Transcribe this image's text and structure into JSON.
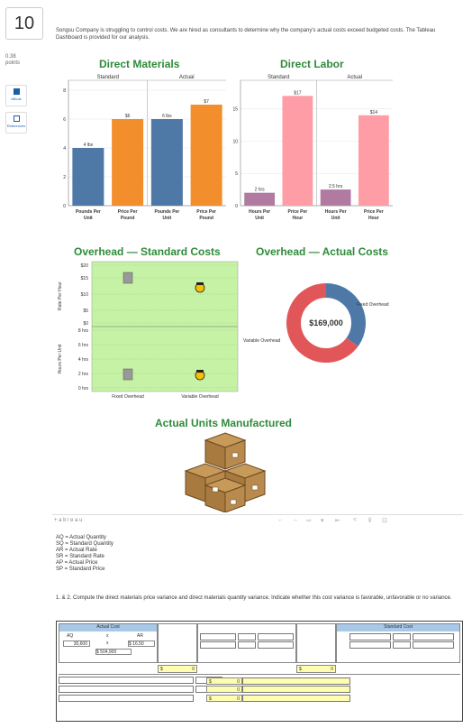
{
  "question": {
    "number": "10",
    "points_value": "0.38",
    "points_label": "points"
  },
  "side": {
    "ebook": "eBook",
    "references": "References"
  },
  "prompt": "Songsu Company is struggling to control costs. We are hired as consultants to determine why the company's actual costs exceed budgeted costs. The Tableau Dashboard is provided for our analysis.",
  "dm": {
    "title": "Direct Materials",
    "standard": "Standard",
    "actual": "Actual",
    "yticks": [
      "8",
      "6",
      "4",
      "2",
      "0"
    ],
    "bars": [
      {
        "label": "4 lbs",
        "value": 4,
        "color": "#4e79a7"
      },
      {
        "label": "$6",
        "value": 6,
        "color": "#f28e2b"
      },
      {
        "label": "6 lbs",
        "value": 6,
        "color": "#4e79a7"
      },
      {
        "label": "$7",
        "value": 7,
        "color": "#f28e2b"
      }
    ],
    "xlabels": [
      [
        "Pounds Per",
        "Unit"
      ],
      [
        "Price Per",
        "Pound"
      ],
      [
        "Pounds Per",
        "Unit"
      ],
      [
        "Price Per",
        "Pound"
      ]
    ]
  },
  "dl": {
    "title": "Direct Labor",
    "standard": "Standard",
    "actual": "Actual",
    "yticks": [
      "15",
      "10",
      "5",
      "0"
    ],
    "bars": [
      {
        "label": "2 hrs",
        "value": 2,
        "color": "#b07aa1"
      },
      {
        "label": "$17",
        "value": 17,
        "color": "#ff9da7"
      },
      {
        "label": "2.5 hrs",
        "value": 2.5,
        "color": "#b07aa1"
      },
      {
        "label": "$14",
        "value": 14,
        "color": "#ff9da7"
      }
    ],
    "xlabels": [
      [
        "Hours Per",
        "Unit"
      ],
      [
        "Price Per",
        "Hour"
      ],
      [
        "Hours Per",
        "Unit"
      ],
      [
        "Price Per",
        "Hour"
      ]
    ]
  },
  "oh_std": {
    "title": "Overhead — Standard Costs",
    "rate_label": "Rate Per Hour",
    "hours_label": "Hours Per Unit",
    "rate_ticks": [
      "$20",
      "$15",
      "$10",
      "$5",
      "$0"
    ],
    "hour_ticks": [
      "8 hrs",
      "6 hrs",
      "4 hrs",
      "2 hrs",
      "0 hrs"
    ],
    "xlabels": [
      "Fixed Overhead",
      "Variable Overhead"
    ]
  },
  "oh_act": {
    "title": "Overhead — Actual Costs",
    "center": "$169,000",
    "fixed_label": "Fixed Overhead",
    "variable_label": "Variable Overhead",
    "fixed_share": 0.35,
    "colors": {
      "fixed": "#4e79a7",
      "variable": "#e15759"
    }
  },
  "units": {
    "title": "Actual Units Manufactured"
  },
  "tableau": {
    "logo": "+ a b l e a u"
  },
  "legend": [
    "AQ = Actual Quantity",
    "SQ = Standard Quantity",
    "AR = Actual Rate",
    "SR = Standard Rate",
    "AP = Actual Price",
    "SP = Standard Price"
  ],
  "instruction": "1. & 2. Compute the direct materials price variance and direct materials quantity variance. Indicate whether this cost variance is favorable, unfavorable or no variance.",
  "work": {
    "actual_cost": "Actual Cost",
    "standard_cost": "Standard Cost",
    "aq": "AQ",
    "x": "x",
    "ar": "AR",
    "aq_val": "30,600",
    "ar_val": "$ 16.50",
    "total": "$ 504,900",
    "dollar": "$",
    "zero": "0"
  }
}
